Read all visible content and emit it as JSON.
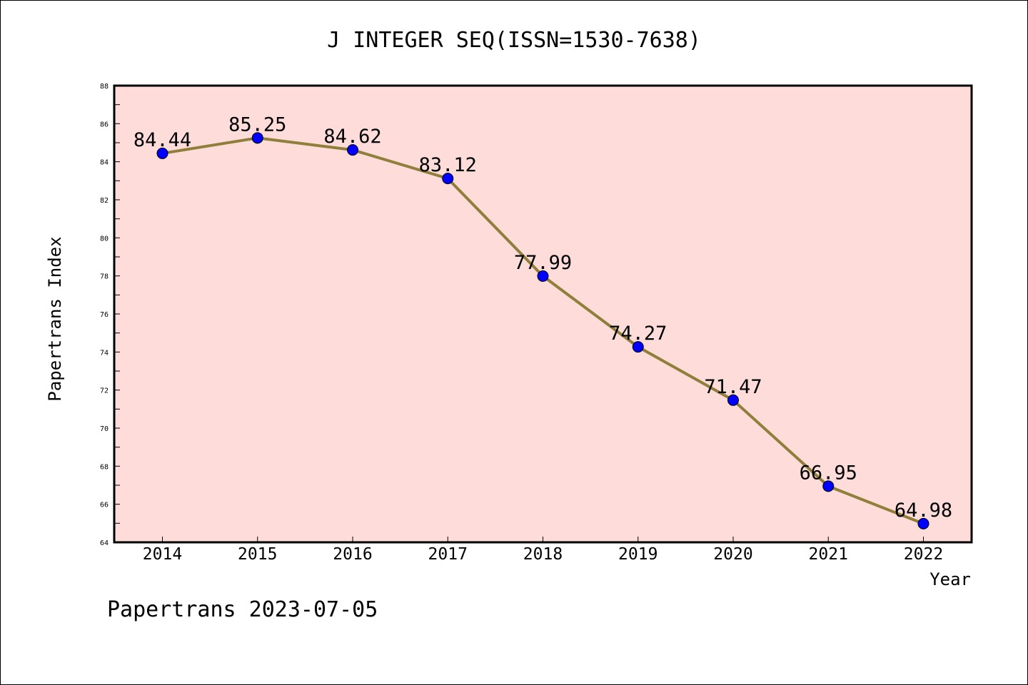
{
  "chart_data": {
    "type": "line",
    "title": "J INTEGER SEQ(ISSN=1530-7638)",
    "xlabel": "Year",
    "ylabel": "Papertrans Index",
    "categories": [
      "2014",
      "2015",
      "2016",
      "2017",
      "2018",
      "2019",
      "2020",
      "2021",
      "2022"
    ],
    "series": [
      {
        "values": [
          84.44,
          85.25,
          84.62,
          83.12,
          77.99,
          74.27,
          71.47,
          66.95,
          64.98
        ],
        "labels": [
          "84.44",
          "85.25",
          "84.62",
          "83.12",
          "77.99",
          "74.27",
          "71.47",
          "66.95",
          "64.98"
        ]
      }
    ],
    "ylim": [
      64,
      88
    ],
    "yticks": [
      "64",
      "66",
      "68",
      "70",
      "72",
      "74",
      "76",
      "78",
      "80",
      "82",
      "84",
      "86",
      "88"
    ],
    "grid": false,
    "legend": "none",
    "colors": {
      "plot_background": "#FDDCDA",
      "line": "#8F7F3A",
      "marker": "#0000FF"
    }
  },
  "footer": "Papertrans 2023-07-05"
}
